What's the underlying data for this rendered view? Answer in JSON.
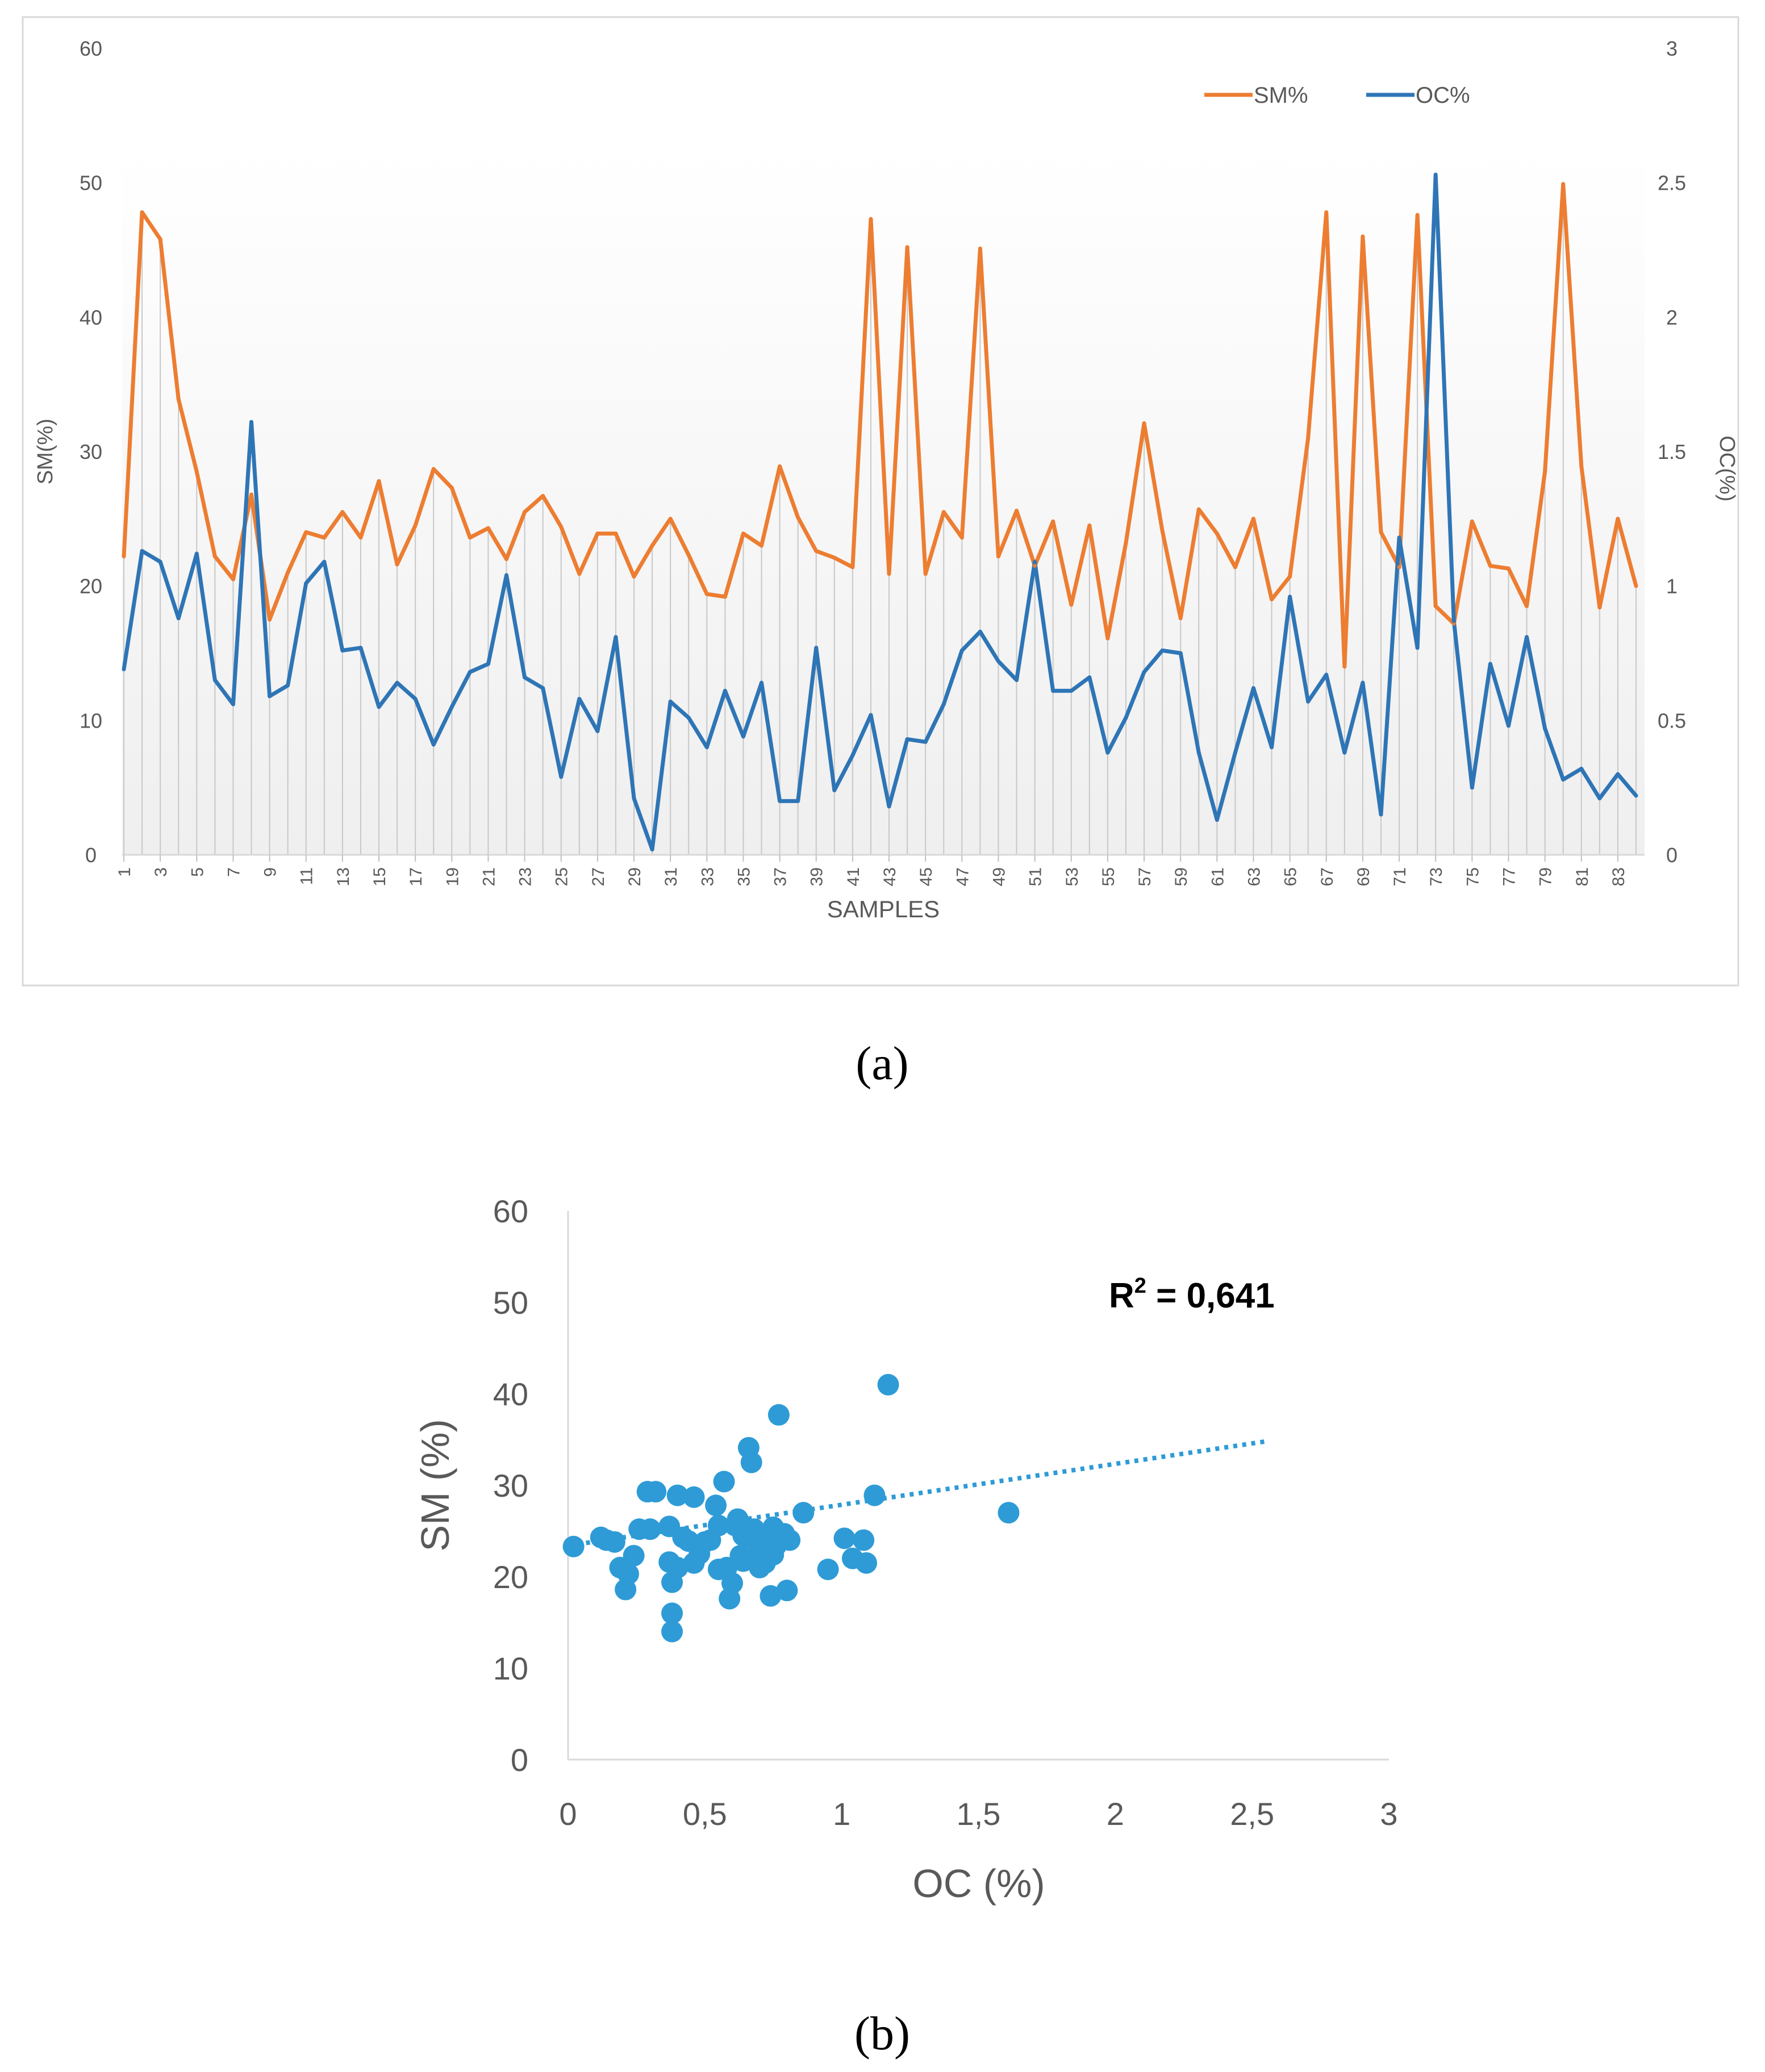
{
  "chart_data": [
    {
      "type": "line",
      "panel_label": "(a)",
      "xlabel": "SAMPLES",
      "ylabel_left": "SM(%)",
      "ylabel_right": "OC(%)",
      "ylim_left": [
        0,
        60
      ],
      "ylim_right": [
        0,
        3
      ],
      "yticks_left": [
        "0",
        "10",
        "20",
        "30",
        "40",
        "50",
        "60"
      ],
      "yticks_right": [
        "0",
        "0.5",
        "1",
        "1.5",
        "2",
        "2.5",
        "3"
      ],
      "x": [
        1,
        2,
        3,
        4,
        5,
        6,
        7,
        8,
        9,
        10,
        11,
        12,
        13,
        14,
        15,
        16,
        17,
        18,
        19,
        20,
        21,
        22,
        23,
        24,
        25,
        26,
        27,
        28,
        29,
        30,
        31,
        32,
        33,
        34,
        35,
        36,
        37,
        38,
        39,
        40,
        41,
        42,
        43,
        44,
        45,
        46,
        47,
        48,
        49,
        50,
        51,
        52,
        53,
        54,
        55,
        56,
        57,
        58,
        59,
        60,
        61,
        62,
        63,
        64,
        65,
        66,
        67,
        68,
        69,
        70,
        71,
        72,
        73,
        74,
        75,
        76,
        77,
        78,
        79,
        80,
        81,
        82,
        83,
        84
      ],
      "xtick_labels": [
        "1",
        "3",
        "5",
        "7",
        "9",
        "11",
        "13",
        "15",
        "17",
        "19",
        "21",
        "23",
        "25",
        "27",
        "29",
        "31",
        "33",
        "35",
        "37",
        "39",
        "41",
        "43",
        "45",
        "47",
        "49",
        "51",
        "53",
        "55",
        "57",
        "59",
        "61",
        "63",
        "65",
        "67",
        "69",
        "71",
        "73",
        "75",
        "77",
        "79",
        "81",
        "83"
      ],
      "legend": [
        "SM%",
        "OC%"
      ],
      "legend_position": "top-right",
      "colors": {
        "sm": "#ED7D31",
        "oc": "#2E75B6",
        "drop": "#C8C8C8",
        "axis": "#D9D9D9"
      },
      "series": [
        {
          "name": "SM%",
          "axis": "left",
          "values": [
            22.2,
            47.8,
            45.8,
            33.9,
            28.5,
            22.2,
            20.5,
            26.8,
            17.5,
            21.0,
            24.0,
            23.6,
            25.5,
            23.6,
            27.8,
            21.6,
            24.5,
            28.7,
            27.3,
            23.6,
            24.3,
            22.0,
            25.5,
            26.7,
            24.4,
            20.9,
            23.9,
            23.9,
            20.7,
            23.0,
            25.0,
            22.3,
            19.4,
            19.2,
            23.9,
            23.0,
            28.9,
            25.1,
            22.6,
            22.1,
            21.4,
            47.3,
            20.9,
            45.2,
            20.9,
            25.5,
            23.6,
            45.1,
            22.2,
            25.6,
            21.5,
            24.8,
            18.6,
            24.5,
            16.1,
            23.2,
            32.1,
            24.1,
            17.6,
            25.7,
            23.9,
            21.4,
            25.0,
            19.0,
            20.7,
            31.0,
            47.8,
            14.0,
            46.0,
            24.0,
            21.4,
            47.6,
            18.5,
            17.2,
            24.8,
            21.5,
            21.3,
            18.5,
            28.5,
            49.9,
            28.9,
            18.4,
            25.0,
            20.0
          ]
        },
        {
          "name": "OC%",
          "axis": "right",
          "values": [
            0.69,
            1.13,
            1.09,
            0.88,
            1.12,
            0.65,
            0.56,
            1.61,
            0.59,
            0.63,
            1.01,
            1.09,
            0.76,
            0.77,
            0.55,
            0.64,
            0.58,
            0.41,
            0.55,
            0.68,
            0.71,
            1.04,
            0.66,
            0.62,
            0.29,
            0.58,
            0.46,
            0.81,
            0.21,
            0.02,
            0.57,
            0.51,
            0.4,
            0.61,
            0.44,
            0.64,
            0.2,
            0.2,
            0.77,
            0.24,
            0.37,
            0.52,
            0.18,
            0.43,
            0.42,
            0.56,
            0.76,
            0.83,
            0.72,
            0.65,
            1.09,
            0.61,
            0.61,
            0.66,
            0.38,
            0.51,
            0.68,
            0.76,
            0.75,
            0.38,
            0.13,
            0.38,
            0.62,
            0.4,
            0.96,
            0.57,
            0.67,
            0.38,
            0.64,
            0.15,
            1.18,
            0.77,
            2.53,
            0.87,
            0.25,
            0.71,
            0.48,
            0.81,
            0.47,
            0.28,
            0.32,
            0.21,
            0.3,
            0.22
          ]
        }
      ]
    },
    {
      "type": "scatter",
      "panel_label": "(b)",
      "xlabel": "OC (%)",
      "ylabel": "SM (%)",
      "xlim": [
        0,
        3
      ],
      "ylim": [
        0,
        60
      ],
      "xtick_labels": [
        "0",
        "0,5",
        "1",
        "1,5",
        "2",
        "2,5",
        "3"
      ],
      "ytick_labels": [
        "0",
        "10",
        "20",
        "30",
        "40",
        "50",
        "60"
      ],
      "annotation": {
        "base": "R",
        "sup": "2",
        "rest": " = 0,641"
      },
      "color": "#2E9BD6",
      "trendline": {
        "x": [
          0,
          2.55
        ],
        "y": [
          23.4,
          34.8
        ],
        "style": "dotted"
      },
      "points": {
        "x": [
          0.02,
          0.12,
          0.14,
          0.17,
          0.19,
          0.21,
          0.22,
          0.24,
          0.26,
          0.29,
          0.3,
          0.32,
          0.37,
          0.38,
          0.38,
          0.37,
          0.38,
          0.4,
          0.4,
          0.42,
          0.44,
          0.46,
          0.46,
          0.48,
          0.5,
          0.52,
          0.54,
          0.55,
          0.55,
          0.57,
          0.58,
          0.59,
          0.6,
          0.61,
          0.62,
          0.63,
          0.64,
          0.64,
          0.66,
          0.67,
          0.67,
          0.68,
          0.69,
          0.7,
          0.71,
          0.72,
          0.73,
          0.74,
          0.75,
          0.75,
          0.76,
          0.77,
          0.78,
          0.79,
          0.8,
          0.81,
          0.86,
          0.95,
          1.01,
          1.04,
          1.08,
          1.09,
          1.12,
          1.17,
          1.61
        ],
        "y": [
          23.3,
          24.3,
          24.0,
          23.8,
          21.0,
          18.6,
          20.3,
          22.3,
          25.2,
          29.3,
          25.2,
          29.3,
          25.5,
          16.0,
          14.0,
          21.6,
          19.4,
          21.0,
          28.9,
          24.3,
          23.9,
          28.7,
          21.5,
          22.5,
          23.8,
          24.0,
          27.8,
          25.6,
          20.8,
          30.4,
          21.0,
          17.6,
          19.3,
          25.6,
          26.3,
          22.3,
          21.7,
          24.5,
          34.1,
          32.5,
          24.3,
          25.2,
          22.5,
          21.0,
          23.3,
          21.5,
          23.9,
          17.9,
          25.4,
          22.4,
          23.4,
          37.7,
          24.1,
          24.7,
          18.5,
          24.0,
          27.0,
          20.8,
          24.2,
          22.0,
          24.0,
          21.5,
          28.9,
          41.0,
          27.0
        ]
      }
    }
  ]
}
